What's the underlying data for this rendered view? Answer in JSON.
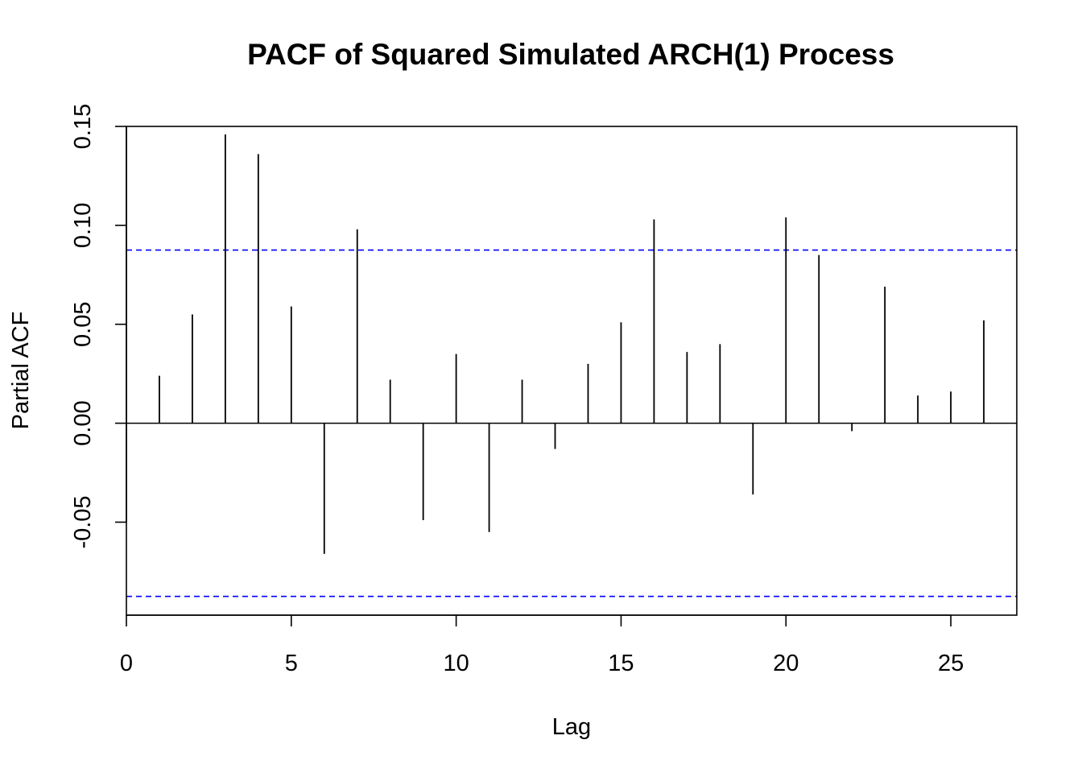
{
  "chart_data": {
    "type": "bar",
    "title": "PACF of Squared Simulated ARCH(1) Process",
    "xlabel": "Lag",
    "ylabel": "Partial ACF",
    "xlim": [
      0,
      27
    ],
    "ylim": [
      -0.097,
      0.15
    ],
    "xticks": [
      0,
      5,
      10,
      15,
      20,
      25
    ],
    "xtick_labels": [
      "0",
      "5",
      "10",
      "15",
      "20",
      "25"
    ],
    "yticks": [
      -0.05,
      0.0,
      0.05,
      0.1,
      0.15
    ],
    "ytick_labels": [
      "-0.05",
      "0.00",
      "0.05",
      "0.10",
      "0.15"
    ],
    "lags": [
      1,
      2,
      3,
      4,
      5,
      6,
      7,
      8,
      9,
      10,
      11,
      12,
      13,
      14,
      15,
      16,
      17,
      18,
      19,
      20,
      21,
      22,
      23,
      24,
      25,
      26
    ],
    "values": [
      0.024,
      0.055,
      0.146,
      0.136,
      0.059,
      -0.066,
      0.098,
      0.022,
      -0.049,
      0.035,
      -0.055,
      0.022,
      -0.013,
      0.03,
      0.051,
      0.103,
      0.036,
      0.04,
      -0.036,
      0.104,
      0.085,
      -0.004,
      0.069,
      0.014,
      0.016,
      0.052
    ],
    "confidence_bounds": [
      0.0875,
      -0.0875
    ],
    "bar_color": "#000000",
    "confidence_color": "#0000ff",
    "grid": false
  }
}
